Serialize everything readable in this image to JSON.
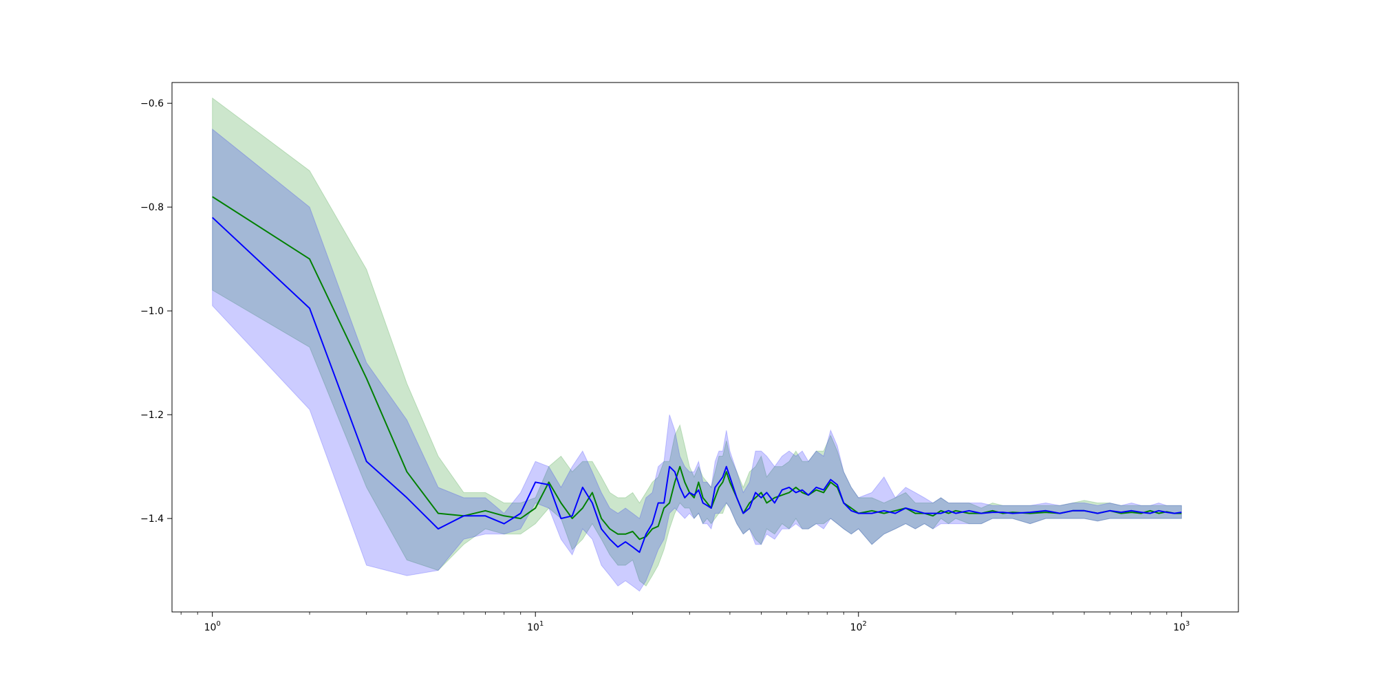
{
  "chart_data": {
    "type": "line",
    "title": "",
    "xlabel": "",
    "ylabel": "",
    "xscale": "log",
    "xlim": [
      0.75,
      1500
    ],
    "ylim": [
      -1.58,
      -0.56
    ],
    "grid": false,
    "legend": "none",
    "x_ticks": [
      {
        "value": 1,
        "base": "10",
        "exp": "0"
      },
      {
        "value": 10,
        "base": "10",
        "exp": "1"
      },
      {
        "value": 100,
        "base": "10",
        "exp": "2"
      },
      {
        "value": 1000,
        "base": "10",
        "exp": "3"
      }
    ],
    "y_ticks": [
      {
        "value": -0.6,
        "label": "−0.6"
      },
      {
        "value": -0.8,
        "label": "−0.8"
      },
      {
        "value": -1.0,
        "label": "−1.0"
      },
      {
        "value": -1.2,
        "label": "−1.2"
      },
      {
        "value": -1.4,
        "label": "−1.4"
      }
    ],
    "series": [
      {
        "color": "#008000",
        "band_color": "#008000",
        "band_opacity": 0.2,
        "x": [
          1,
          2,
          3,
          4,
          5,
          6,
          7,
          8,
          9,
          10,
          11,
          12,
          13,
          14,
          15,
          16,
          17,
          18,
          19,
          20,
          21,
          22,
          23,
          24,
          25,
          26,
          27,
          28,
          29,
          30,
          31,
          32,
          33,
          34,
          35,
          36,
          37,
          38,
          39,
          40,
          42,
          44,
          46,
          48,
          50,
          52,
          55,
          58,
          61,
          64,
          67,
          70,
          74,
          78,
          82,
          86,
          90,
          95,
          100,
          110,
          120,
          130,
          140,
          150,
          160,
          170,
          180,
          190,
          200,
          220,
          240,
          260,
          280,
          300,
          340,
          380,
          420,
          460,
          500,
          550,
          600,
          650,
          700,
          750,
          800,
          850,
          900,
          950,
          1000
        ],
        "y": [
          -0.78,
          -0.9,
          -1.13,
          -1.31,
          -1.39,
          -1.395,
          -1.385,
          -1.395,
          -1.4,
          -1.38,
          -1.33,
          -1.37,
          -1.4,
          -1.38,
          -1.35,
          -1.4,
          -1.42,
          -1.43,
          -1.43,
          -1.425,
          -1.44,
          -1.435,
          -1.42,
          -1.415,
          -1.38,
          -1.37,
          -1.33,
          -1.3,
          -1.33,
          -1.35,
          -1.36,
          -1.33,
          -1.36,
          -1.37,
          -1.38,
          -1.36,
          -1.34,
          -1.33,
          -1.31,
          -1.33,
          -1.36,
          -1.39,
          -1.37,
          -1.36,
          -1.35,
          -1.37,
          -1.36,
          -1.355,
          -1.35,
          -1.34,
          -1.35,
          -1.355,
          -1.345,
          -1.35,
          -1.33,
          -1.34,
          -1.37,
          -1.38,
          -1.39,
          -1.385,
          -1.39,
          -1.385,
          -1.38,
          -1.39,
          -1.39,
          -1.395,
          -1.385,
          -1.39,
          -1.385,
          -1.39,
          -1.39,
          -1.385,
          -1.39,
          -1.388,
          -1.39,
          -1.388,
          -1.39,
          -1.385,
          -1.385,
          -1.39,
          -1.385,
          -1.39,
          -1.388,
          -1.39,
          -1.385,
          -1.39,
          -1.387,
          -1.39,
          -1.39
        ],
        "lower": [
          -0.96,
          -1.07,
          -1.34,
          -1.48,
          -1.5,
          -1.45,
          -1.42,
          -1.43,
          -1.43,
          -1.41,
          -1.38,
          -1.4,
          -1.46,
          -1.44,
          -1.41,
          -1.44,
          -1.47,
          -1.49,
          -1.49,
          -1.48,
          -1.52,
          -1.53,
          -1.51,
          -1.49,
          -1.46,
          -1.42,
          -1.39,
          -1.37,
          -1.38,
          -1.38,
          -1.4,
          -1.39,
          -1.41,
          -1.4,
          -1.41,
          -1.4,
          -1.39,
          -1.39,
          -1.37,
          -1.38,
          -1.41,
          -1.43,
          -1.42,
          -1.44,
          -1.45,
          -1.42,
          -1.43,
          -1.41,
          -1.42,
          -1.4,
          -1.42,
          -1.42,
          -1.41,
          -1.41,
          -1.4,
          -1.41,
          -1.42,
          -1.43,
          -1.42,
          -1.45,
          -1.43,
          -1.42,
          -1.41,
          -1.42,
          -1.41,
          -1.42,
          -1.4,
          -1.41,
          -1.4,
          -1.41,
          -1.41,
          -1.4,
          -1.4,
          -1.4,
          -1.41,
          -1.4,
          -1.4,
          -1.4,
          -1.4,
          -1.405,
          -1.4,
          -1.4,
          -1.4,
          -1.4,
          -1.4,
          -1.4,
          -1.4,
          -1.4,
          -1.4
        ],
        "upper": [
          -0.59,
          -0.73,
          -0.92,
          -1.14,
          -1.28,
          -1.35,
          -1.35,
          -1.37,
          -1.37,
          -1.36,
          -1.3,
          -1.28,
          -1.31,
          -1.29,
          -1.29,
          -1.32,
          -1.35,
          -1.36,
          -1.36,
          -1.35,
          -1.37,
          -1.35,
          -1.33,
          -1.32,
          -1.29,
          -1.29,
          -1.24,
          -1.22,
          -1.26,
          -1.3,
          -1.32,
          -1.3,
          -1.32,
          -1.33,
          -1.34,
          -1.31,
          -1.28,
          -1.28,
          -1.25,
          -1.28,
          -1.31,
          -1.34,
          -1.31,
          -1.3,
          -1.28,
          -1.32,
          -1.3,
          -1.3,
          -1.29,
          -1.27,
          -1.29,
          -1.29,
          -1.27,
          -1.27,
          -1.24,
          -1.27,
          -1.31,
          -1.34,
          -1.36,
          -1.36,
          -1.37,
          -1.36,
          -1.35,
          -1.37,
          -1.37,
          -1.37,
          -1.36,
          -1.37,
          -1.37,
          -1.37,
          -1.38,
          -1.37,
          -1.375,
          -1.375,
          -1.375,
          -1.375,
          -1.375,
          -1.37,
          -1.365,
          -1.37,
          -1.37,
          -1.375,
          -1.375,
          -1.375,
          -1.375,
          -1.375,
          -1.375,
          -1.375,
          -1.375
        ]
      },
      {
        "color": "#0000ff",
        "band_color": "#0000ff",
        "band_opacity": 0.2,
        "x": [
          1,
          2,
          3,
          4,
          5,
          6,
          7,
          8,
          9,
          10,
          11,
          12,
          13,
          14,
          15,
          16,
          17,
          18,
          19,
          20,
          21,
          22,
          23,
          24,
          25,
          26,
          27,
          28,
          29,
          30,
          31,
          32,
          33,
          34,
          35,
          36,
          37,
          38,
          39,
          40,
          42,
          44,
          46,
          48,
          50,
          52,
          55,
          58,
          61,
          64,
          67,
          70,
          74,
          78,
          82,
          86,
          90,
          95,
          100,
          110,
          120,
          130,
          140,
          150,
          160,
          170,
          180,
          190,
          200,
          220,
          240,
          260,
          280,
          300,
          340,
          380,
          420,
          460,
          500,
          550,
          600,
          650,
          700,
          750,
          800,
          850,
          900,
          950,
          1000
        ],
        "y": [
          -0.82,
          -0.995,
          -1.29,
          -1.36,
          -1.42,
          -1.395,
          -1.395,
          -1.41,
          -1.39,
          -1.33,
          -1.335,
          -1.4,
          -1.395,
          -1.34,
          -1.37,
          -1.42,
          -1.44,
          -1.455,
          -1.445,
          -1.455,
          -1.465,
          -1.43,
          -1.41,
          -1.37,
          -1.37,
          -1.3,
          -1.31,
          -1.34,
          -1.36,
          -1.35,
          -1.355,
          -1.345,
          -1.37,
          -1.375,
          -1.38,
          -1.34,
          -1.33,
          -1.32,
          -1.3,
          -1.32,
          -1.36,
          -1.39,
          -1.38,
          -1.35,
          -1.36,
          -1.35,
          -1.37,
          -1.345,
          -1.34,
          -1.35,
          -1.345,
          -1.355,
          -1.34,
          -1.345,
          -1.325,
          -1.335,
          -1.37,
          -1.385,
          -1.39,
          -1.39,
          -1.385,
          -1.39,
          -1.38,
          -1.385,
          -1.39,
          -1.39,
          -1.39,
          -1.385,
          -1.39,
          -1.385,
          -1.39,
          -1.388,
          -1.388,
          -1.39,
          -1.388,
          -1.385,
          -1.39,
          -1.385,
          -1.385,
          -1.39,
          -1.385,
          -1.388,
          -1.385,
          -1.388,
          -1.39,
          -1.385,
          -1.388,
          -1.39,
          -1.388
        ],
        "lower": [
          -0.99,
          -1.19,
          -1.49,
          -1.51,
          -1.5,
          -1.44,
          -1.43,
          -1.43,
          -1.42,
          -1.37,
          -1.38,
          -1.44,
          -1.47,
          -1.42,
          -1.44,
          -1.49,
          -1.51,
          -1.53,
          -1.52,
          -1.53,
          -1.54,
          -1.52,
          -1.49,
          -1.46,
          -1.44,
          -1.39,
          -1.38,
          -1.39,
          -1.4,
          -1.39,
          -1.4,
          -1.39,
          -1.41,
          -1.41,
          -1.42,
          -1.39,
          -1.39,
          -1.38,
          -1.37,
          -1.38,
          -1.41,
          -1.43,
          -1.42,
          -1.45,
          -1.45,
          -1.43,
          -1.44,
          -1.42,
          -1.42,
          -1.41,
          -1.42,
          -1.42,
          -1.41,
          -1.42,
          -1.4,
          -1.41,
          -1.42,
          -1.43,
          -1.42,
          -1.45,
          -1.43,
          -1.42,
          -1.41,
          -1.42,
          -1.41,
          -1.42,
          -1.41,
          -1.41,
          -1.41,
          -1.41,
          -1.41,
          -1.4,
          -1.4,
          -1.4,
          -1.41,
          -1.4,
          -1.4,
          -1.4,
          -1.4,
          -1.405,
          -1.4,
          -1.4,
          -1.4,
          -1.4,
          -1.4,
          -1.4,
          -1.4,
          -1.4,
          -1.4
        ],
        "upper": [
          -0.65,
          -0.8,
          -1.1,
          -1.21,
          -1.34,
          -1.36,
          -1.36,
          -1.39,
          -1.35,
          -1.29,
          -1.3,
          -1.34,
          -1.3,
          -1.27,
          -1.31,
          -1.35,
          -1.38,
          -1.39,
          -1.38,
          -1.39,
          -1.4,
          -1.36,
          -1.35,
          -1.3,
          -1.29,
          -1.2,
          -1.23,
          -1.28,
          -1.3,
          -1.31,
          -1.31,
          -1.29,
          -1.33,
          -1.33,
          -1.34,
          -1.29,
          -1.27,
          -1.27,
          -1.23,
          -1.27,
          -1.31,
          -1.35,
          -1.33,
          -1.27,
          -1.27,
          -1.28,
          -1.3,
          -1.28,
          -1.27,
          -1.28,
          -1.27,
          -1.29,
          -1.27,
          -1.28,
          -1.23,
          -1.26,
          -1.31,
          -1.34,
          -1.36,
          -1.35,
          -1.32,
          -1.36,
          -1.34,
          -1.35,
          -1.36,
          -1.37,
          -1.36,
          -1.37,
          -1.37,
          -1.37,
          -1.37,
          -1.375,
          -1.375,
          -1.375,
          -1.375,
          -1.37,
          -1.375,
          -1.37,
          -1.37,
          -1.375,
          -1.37,
          -1.375,
          -1.37,
          -1.375,
          -1.375,
          -1.37,
          -1.375,
          -1.375,
          -1.375
        ]
      }
    ]
  }
}
